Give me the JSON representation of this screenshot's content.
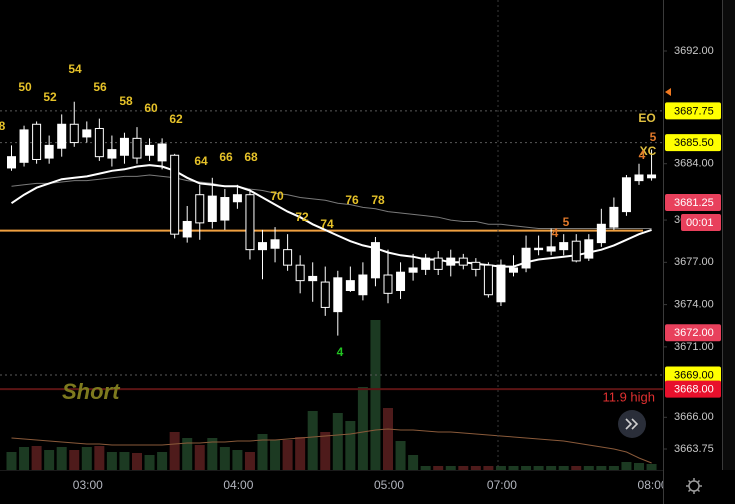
{
  "chart_data": {
    "type": "candlestick",
    "categories": [
      null,
      null,
      null,
      null,
      null,
      null,
      "03:00",
      null,
      null,
      null,
      null,
      null,
      null,
      null,
      null,
      null,
      null,
      null,
      "04:00",
      null,
      null,
      null,
      null,
      null,
      null,
      null,
      null,
      null,
      null,
      null,
      "05:00",
      null,
      null,
      null,
      null,
      null,
      null,
      null,
      null,
      "07:00",
      null,
      null,
      null,
      null,
      null,
      null,
      null,
      null,
      null,
      null,
      null,
      "08:00"
    ],
    "candles": {
      "open": [
        3683.7,
        3684.1,
        3686.8,
        3684.4,
        3685.1,
        3686.8,
        3685.9,
        3686.5,
        3684.4,
        3684.6,
        3685.8,
        3684.6,
        3684.2,
        3684.6,
        3678.8,
        3681.8,
        3679.9,
        3680.0,
        3681.3,
        3681.8,
        3677.9,
        3678.0,
        3677.9,
        3676.8,
        3675.7,
        3675.6,
        3673.5,
        3675.0,
        3674.7,
        3675.9,
        3676.1,
        3675.0,
        3676.3,
        3676.5,
        3677.3,
        3676.8,
        3677.3,
        3677.0,
        3676.8,
        3674.2,
        3676.3,
        3676.6,
        3677.9,
        3677.8,
        3677.9,
        3678.5,
        3677.3,
        3678.4,
        3679.5,
        3680.6,
        3682.8,
        3683.0
      ],
      "high": [
        3685.3,
        3686.7,
        3687.0,
        3686.0,
        3687.5,
        3688.4,
        3687.0,
        3687.2,
        3686.0,
        3686.2,
        3686.6,
        3685.8,
        3685.8,
        3684.7,
        3681.0,
        3682.5,
        3683.0,
        3682.2,
        3682.5,
        3682.2,
        3679.3,
        3679.5,
        3679.0,
        3677.5,
        3677.0,
        3676.7,
        3676.4,
        3676.7,
        3677.0,
        3678.8,
        3677.9,
        3677.0,
        3677.6,
        3677.6,
        3677.8,
        3677.9,
        3677.6,
        3677.3,
        3677.0,
        3677.2,
        3677.5,
        3678.9,
        3678.9,
        3679.4,
        3679.0,
        3679.0,
        3679.0,
        3680.8,
        3681.6,
        3683.2,
        3684.0,
        3685.0
      ],
      "low": [
        3683.5,
        3683.8,
        3684.0,
        3684.0,
        3684.5,
        3685.2,
        3685.5,
        3684.2,
        3683.8,
        3684.0,
        3684.0,
        3684.2,
        3683.6,
        3678.7,
        3678.4,
        3678.6,
        3679.4,
        3679.3,
        3680.8,
        3677.2,
        3675.8,
        3677.0,
        3676.4,
        3674.8,
        3674.2,
        3673.2,
        3671.8,
        3674.9,
        3674.3,
        3675.3,
        3674.1,
        3674.4,
        3675.7,
        3676.1,
        3676.1,
        3676.0,
        3676.5,
        3676.0,
        3674.5,
        3673.9,
        3676.0,
        3676.3,
        3677.5,
        3677.5,
        3677.5,
        3677.0,
        3677.1,
        3678.1,
        3679.3,
        3680.3,
        3682.5,
        3682.8
      ],
      "close": [
        3684.5,
        3686.4,
        3684.3,
        3685.3,
        3686.8,
        3685.5,
        3686.4,
        3684.5,
        3685.0,
        3685.8,
        3684.4,
        3685.3,
        3685.4,
        3679.0,
        3679.9,
        3679.8,
        3681.7,
        3681.6,
        3681.8,
        3677.9,
        3678.4,
        3678.6,
        3676.8,
        3675.7,
        3676.0,
        3673.8,
        3675.9,
        3675.7,
        3676.1,
        3678.4,
        3674.8,
        3676.3,
        3676.6,
        3677.3,
        3676.5,
        3677.3,
        3676.8,
        3676.5,
        3674.7,
        3676.8,
        3676.6,
        3678.0,
        3678.0,
        3678.1,
        3678.4,
        3677.1,
        3678.6,
        3679.7,
        3680.9,
        3683.0,
        3683.2,
        3683.2
      ]
    },
    "up_color": "#ffffff",
    "down_color": "#000000",
    "wick_color": "#ffffff",
    "moving_averages": [
      {
        "color": "#7a7a7a",
        "values": [
          3682.4,
          3682.5,
          3682.6,
          3682.6,
          3682.7,
          3682.8,
          3682.8,
          3682.9,
          3683.0,
          3683.1,
          3683.1,
          3683.2,
          3683.1,
          3683.0,
          3682.8,
          3682.7,
          3682.6,
          3682.4,
          3682.4,
          3682.2,
          3682.1,
          3681.9,
          3681.8,
          3681.6,
          3681.5,
          3681.4,
          3681.2,
          3681.1,
          3680.9,
          3680.8,
          3680.6,
          3680.5,
          3680.4,
          3680.3,
          3680.2,
          3680.0,
          3679.9,
          3679.9,
          3679.7,
          3679.7,
          3679.6,
          3679.5,
          3679.4,
          3679.4,
          3679.4,
          3679.4,
          3679.4,
          3679.4,
          3679.4,
          3679.4,
          3679.4,
          3679.4
        ]
      },
      {
        "color": "#ffffff",
        "values": [
          3681.2,
          3681.8,
          3682.3,
          3682.6,
          3682.9,
          3683.0,
          3683.1,
          3683.3,
          3683.5,
          3683.6,
          3683.8,
          3683.9,
          3683.8,
          3683.5,
          3683.0,
          3682.6,
          3682.5,
          3682.4,
          3682.4,
          3682.1,
          3681.6,
          3681.1,
          3680.6,
          3680.2,
          3679.7,
          3679.3,
          3678.9,
          3678.5,
          3678.2,
          3678.0,
          3677.7,
          3677.5,
          3677.4,
          3677.2,
          3677.2,
          3677.0,
          3677.0,
          3676.9,
          3676.8,
          3676.7,
          3676.7,
          3677.0,
          3677.2,
          3677.3,
          3677.4,
          3677.5,
          3677.7,
          3677.9,
          3678.2,
          3678.6,
          3679.0,
          3679.3
        ]
      }
    ],
    "volume": {
      "values": [
        18,
        23,
        24,
        20,
        23,
        20,
        23,
        24,
        18,
        18,
        17,
        15,
        18,
        38,
        32,
        25,
        32,
        23,
        20,
        18,
        36,
        30,
        30,
        33,
        59,
        38,
        57,
        49,
        83,
        150,
        62,
        29,
        15,
        4,
        4,
        4,
        4,
        4,
        4,
        4,
        4,
        4,
        4,
        4,
        4,
        4,
        4,
        4,
        4,
        8,
        7,
        6
      ],
      "ylim": [
        0,
        160
      ],
      "up_color": "#1c3a22",
      "down_color": "#4e1b1b",
      "ma": {
        "color": "#8a5a3a",
        "values": [
          32,
          31,
          30,
          29,
          28,
          27,
          26,
          26,
          25,
          25,
          25,
          25,
          25,
          26,
          27,
          27,
          28,
          28,
          29,
          29,
          30,
          30,
          31,
          32,
          33,
          34,
          35,
          36,
          38,
          40,
          41,
          40,
          40,
          39,
          38,
          38,
          37,
          36,
          35,
          34,
          33,
          32,
          31,
          30,
          29,
          27,
          25,
          23,
          21,
          18,
          12,
          7
        ]
      }
    },
    "ylim": [
      3662.26,
      3695.62
    ],
    "yticks": [
      {
        "value": 3692,
        "label": "3692.00"
      },
      {
        "value": 3684,
        "label": "3684.00"
      },
      {
        "value": 3680,
        "label": "3680.00"
      },
      {
        "value": 3677,
        "label": "3677.00"
      },
      {
        "value": 3674,
        "label": "3674.00"
      },
      {
        "value": 3671,
        "label": "3671.00"
      },
      {
        "value": 3666,
        "label": "3666.00"
      },
      {
        "value": 3663.75,
        "label": "3663.75"
      }
    ],
    "levels": [
      {
        "value": 3679.25,
        "line_color": "#f0a040",
        "dashed": false
      },
      {
        "value": 3687.75,
        "label": "3687.75",
        "box_color": "#ffff00",
        "text_color": "#000000",
        "line_color": "#5a5a5a",
        "dashed": true
      },
      {
        "value": 3685.5,
        "label": "3685.50",
        "box_color": "#ffff00",
        "text_color": "#000000",
        "line_color": "#5a5a5a",
        "dashed": true
      },
      {
        "value": 3681.25,
        "label": "3681.25",
        "box_color": "#e8405c",
        "text_color": "#ffffff"
      },
      {
        "value": 3672,
        "label": "3672.00",
        "box_color": "#e8405c",
        "text_color": "#ffffff"
      },
      {
        "value": 3669,
        "label": "3669.00",
        "box_color": "#ffff00",
        "text_color": "#000000",
        "line_color": "#5a5a5a",
        "dashed": true
      },
      {
        "value": 3668,
        "label": "3668.00",
        "box_color": "#e8102c",
        "text_color": "#ffffff",
        "line_color": "#5c1414",
        "dashed": false
      }
    ],
    "countdown": {
      "label": "00:01",
      "box_color": "#e8405c",
      "text_color": "#ffffff"
    },
    "annotations": [
      {
        "text": "8",
        "color": "#e6c229"
      },
      {
        "text": "50",
        "color": "#e6c229"
      },
      {
        "text": "52",
        "color": "#e6c229"
      },
      {
        "text": "54",
        "color": "#e6c229"
      },
      {
        "text": "56",
        "color": "#e6c229"
      },
      {
        "text": "58",
        "color": "#e6c229"
      },
      {
        "text": "60",
        "color": "#e6c229"
      },
      {
        "text": "62",
        "color": "#e6c229"
      },
      {
        "text": "64",
        "color": "#e6c229"
      },
      {
        "text": "66",
        "color": "#e6c229"
      },
      {
        "text": "68",
        "color": "#e6c229"
      },
      {
        "text": "70",
        "color": "#e6c229"
      },
      {
        "text": "72",
        "color": "#e6c229"
      },
      {
        "text": "74",
        "color": "#e6c229"
      },
      {
        "text": "76",
        "color": "#e6c229"
      },
      {
        "text": "78",
        "color": "#e6c229"
      },
      {
        "text": "4",
        "color": "#22c422"
      },
      {
        "text": "4",
        "color": "#e0782a"
      },
      {
        "text": "5",
        "color": "#e0782a"
      },
      {
        "text": "EO",
        "color": "#e0c040"
      },
      {
        "text": "5",
        "color": "#e0782a"
      },
      {
        "text": "XC",
        "color": "#e0c040"
      },
      {
        "text": "4",
        "color": "#e0782a"
      }
    ],
    "signal": {
      "text": "Short",
      "color": "#7d7a1e"
    },
    "note": {
      "text": "11.9 high",
      "color": "#e03030"
    }
  }
}
